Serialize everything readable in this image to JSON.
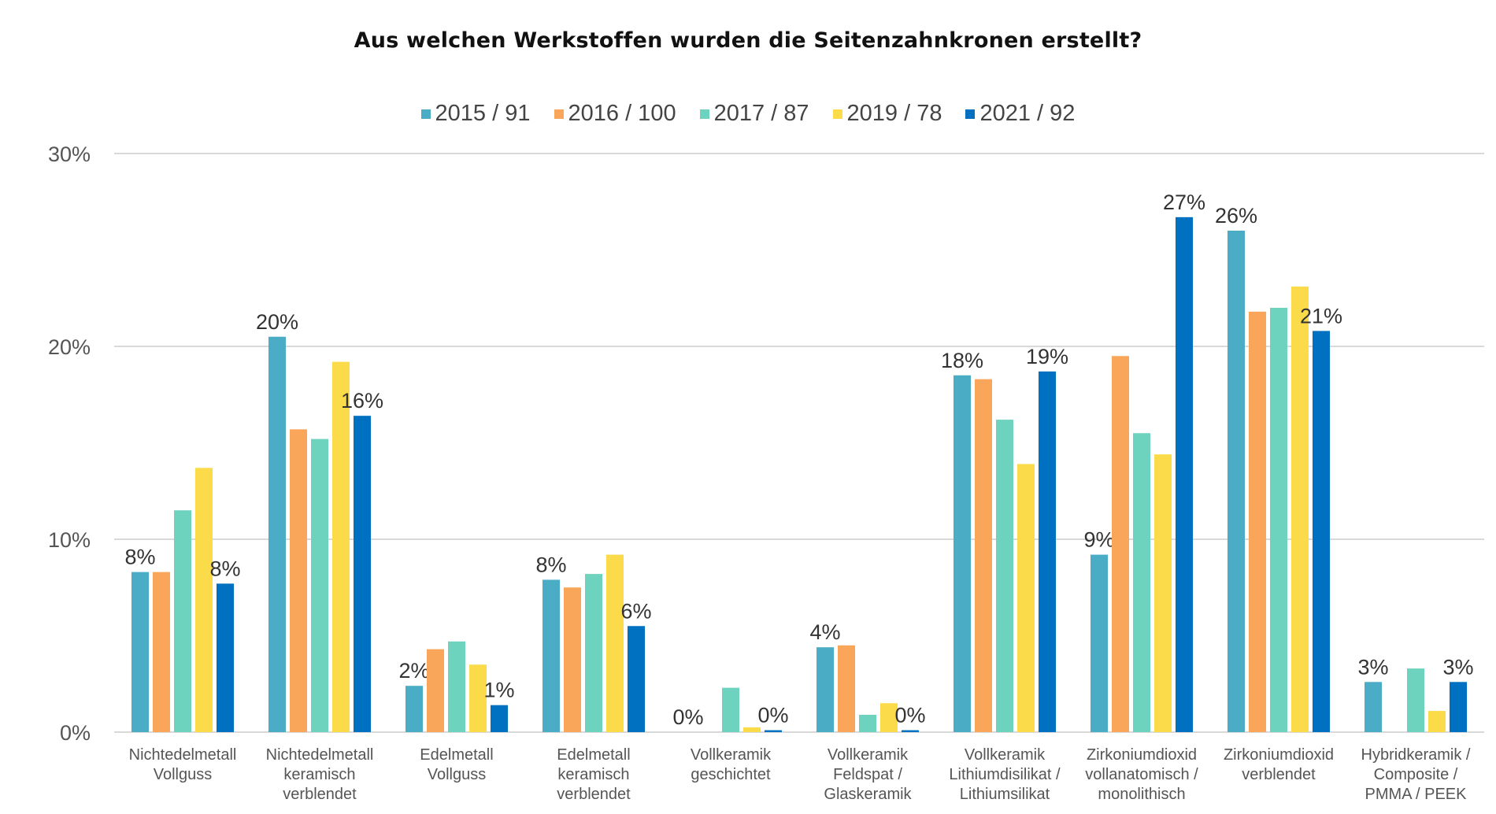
{
  "chart_data": {
    "type": "bar",
    "title": "Aus welchen Werkstoffen wurden die Seitenzahnkronen erstellt?",
    "xlabel": "",
    "ylabel": "",
    "ylim": [
      0,
      30
    ],
    "yticks": [
      0,
      10,
      20,
      30
    ],
    "ytick_labels": [
      "0%",
      "10%",
      "20%",
      "30%"
    ],
    "grid": true,
    "legend_position": "top-center",
    "categories": [
      [
        "Nichtedelmetall",
        "Vollguss"
      ],
      [
        "Nichtedelmetall",
        "keramisch",
        "verblendet"
      ],
      [
        "Edelmetall",
        "Vollguss"
      ],
      [
        "Edelmetall",
        "keramisch",
        "verblendet"
      ],
      [
        "Vollkeramik",
        "geschichtet"
      ],
      [
        "Vollkeramik",
        "Feldspat /",
        "Glaskeramik"
      ],
      [
        "Vollkeramik",
        "Lithiumdisilikat /",
        "Lithiumsilikat"
      ],
      [
        "Zirkoniumdioxid",
        "vollanatomisch /",
        "monolithisch"
      ],
      [
        "Zirkoniumdioxid",
        "verblendet"
      ],
      [
        "Hybridkeramik /",
        "Composite /",
        "PMMA / PEEK"
      ]
    ],
    "series": [
      {
        "name": "2015 / 91",
        "color": "#4BACC6",
        "values": [
          8.3,
          20.5,
          2.4,
          7.9,
          0,
          4.4,
          18.5,
          9.2,
          26.0,
          2.6
        ],
        "labels": [
          "8%",
          "20%",
          "2%",
          "8%",
          "0%",
          "4%",
          "18%",
          "9%",
          "26%",
          "3%"
        ]
      },
      {
        "name": "2016 / 100",
        "color": "#F9A65A",
        "values": [
          8.3,
          15.7,
          4.3,
          7.5,
          0,
          4.5,
          18.3,
          19.5,
          21.8,
          0
        ],
        "labels": null
      },
      {
        "name": "2017 / 87",
        "color": "#6DD3BE",
        "values": [
          11.5,
          15.2,
          4.7,
          8.2,
          2.3,
          0.9,
          16.2,
          15.5,
          22.0,
          3.3
        ],
        "labels": null
      },
      {
        "name": "2019 / 78",
        "color": "#FCDB4A",
        "values": [
          13.7,
          19.2,
          3.5,
          9.2,
          0.25,
          1.5,
          13.9,
          14.4,
          23.1,
          1.1
        ],
        "labels": null
      },
      {
        "name": "2021 / 92",
        "color": "#0070C0",
        "values": [
          7.7,
          16.4,
          1.4,
          5.5,
          0.1,
          0.1,
          18.7,
          26.7,
          20.8,
          2.6
        ],
        "labels": [
          "8%",
          "16%",
          "1%",
          "6%",
          "0%",
          "0%",
          "19%",
          "27%",
          "21%",
          "3%"
        ]
      }
    ]
  }
}
